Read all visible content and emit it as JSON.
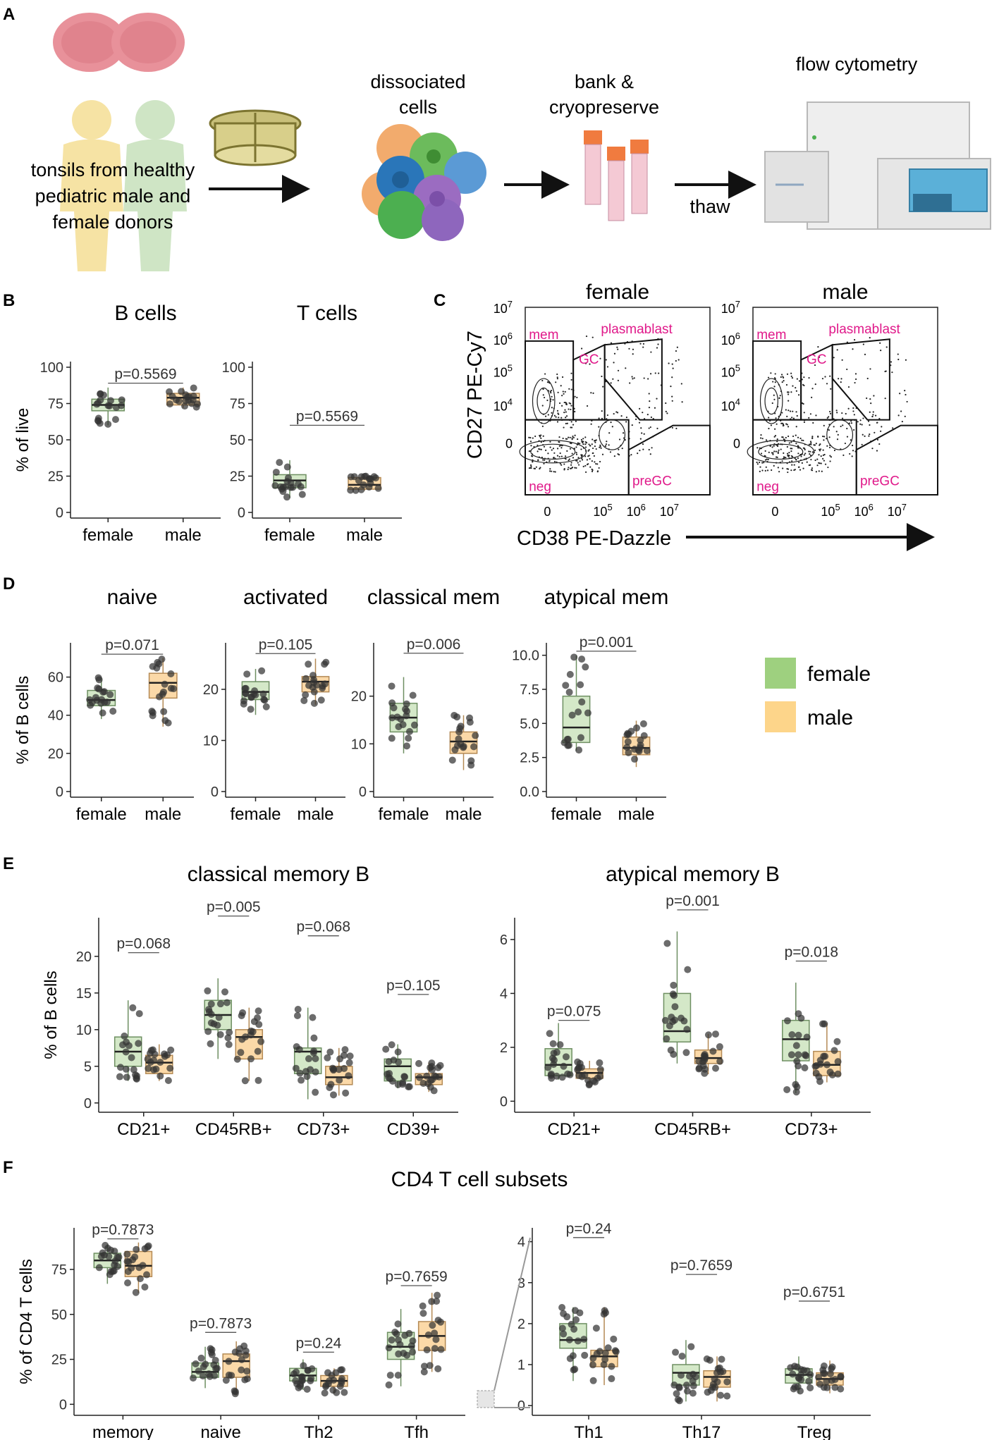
{
  "colors": {
    "female_fill": "#d4e8c8",
    "female_stroke": "#6e8f62",
    "male_fill": "#fbd9a8",
    "male_stroke": "#b48a55",
    "legend_female": "#9ed07f",
    "legend_male": "#fdd58a",
    "gate_label": "#e0198a",
    "dot": "#333333"
  },
  "panel_letters": [
    "A",
    "B",
    "C",
    "D",
    "E",
    "F"
  ],
  "workflow": {
    "donor_label": [
      "tonsils from healthy",
      "pediatric male and",
      "female donors"
    ],
    "dissociated_label": [
      "dissociated",
      "cells"
    ],
    "bank_label": [
      "bank &",
      "cryopreserve"
    ],
    "thaw_label": "thaw",
    "flow_label": "flow cytometry"
  },
  "flow": {
    "titles": [
      "female",
      "male"
    ],
    "y_label": "CD27 PE-Cy7",
    "x_label": "CD38 PE-Dazzle",
    "y_ticks": [
      {
        "b": "10",
        "e": "7"
      },
      {
        "b": "10",
        "e": "6"
      },
      {
        "b": "10",
        "e": "5"
      },
      {
        "b": "10",
        "e": "4"
      },
      {
        "b": "0",
        "e": ""
      }
    ],
    "x_ticks": [
      {
        "b": "0",
        "e": ""
      },
      {
        "b": "10",
        "e": "5"
      },
      {
        "b": "10",
        "e": "6"
      },
      {
        "b": "10",
        "e": "7"
      }
    ],
    "gates": [
      "mem",
      "plasmablast",
      "GC",
      "neg",
      "preGC"
    ]
  },
  "legend": {
    "female": "female",
    "male": "male"
  },
  "chart_data": [
    {
      "id": "B1",
      "type": "box",
      "title": "B cells",
      "ylabel": "% of live",
      "ylim": [
        0,
        100
      ],
      "yticks": [
        0,
        25,
        50,
        75,
        100
      ],
      "categories": [
        "female",
        "male"
      ],
      "boxes": [
        {
          "group": "female",
          "cat": 0,
          "q1": 70,
          "med": 74,
          "q3": 78,
          "lo": 60,
          "hi": 86
        },
        {
          "group": "male",
          "cat": 1,
          "q1": 74,
          "med": 79,
          "q3": 82,
          "lo": 72,
          "hi": 86
        }
      ],
      "pvalues": [
        {
          "label": "p=0.5569",
          "at": 89
        }
      ]
    },
    {
      "id": "B2",
      "type": "box",
      "title": "T cells",
      "ylabel": "",
      "ylim": [
        0,
        100
      ],
      "yticks": [
        0,
        25,
        50,
        75,
        100
      ],
      "categories": [
        "female",
        "male"
      ],
      "boxes": [
        {
          "group": "female",
          "cat": 0,
          "q1": 17,
          "med": 22,
          "q3": 26,
          "lo": 10,
          "hi": 36
        },
        {
          "group": "male",
          "cat": 1,
          "q1": 16,
          "med": 19,
          "q3": 24,
          "lo": 15,
          "hi": 25
        }
      ],
      "pvalues": [
        {
          "label": "p=0.5569",
          "at": 60
        }
      ]
    },
    {
      "id": "D1",
      "type": "box",
      "title": "naive",
      "ylabel": "% of B cells",
      "ylim": [
        0,
        75
      ],
      "yticks": [
        0,
        20,
        40,
        60
      ],
      "categories": [
        "female",
        "male"
      ],
      "boxes": [
        {
          "group": "female",
          "cat": 0,
          "q1": 45,
          "med": 48,
          "q3": 53,
          "lo": 38,
          "hi": 60
        },
        {
          "group": "male",
          "cat": 1,
          "q1": 49,
          "med": 57,
          "q3": 62,
          "lo": 34,
          "hi": 70
        }
      ],
      "pvalues": [
        {
          "label": "p=0.071",
          "at": 72
        }
      ]
    },
    {
      "id": "D2",
      "type": "box",
      "title": "activated",
      "ylabel": "",
      "ylim": [
        0,
        28
      ],
      "yticks": [
        0,
        10,
        20
      ],
      "categories": [
        "female",
        "male"
      ],
      "boxes": [
        {
          "group": "female",
          "cat": 0,
          "q1": 18,
          "med": 19.5,
          "q3": 21.5,
          "lo": 15,
          "hi": 24
        },
        {
          "group": "male",
          "cat": 1,
          "q1": 19.5,
          "med": 21.5,
          "q3": 22.5,
          "lo": 17,
          "hi": 26
        }
      ],
      "pvalues": [
        {
          "label": "p=0.105",
          "at": 27
        }
      ]
    },
    {
      "id": "D3",
      "type": "box",
      "title": "classical mem",
      "ylabel": "",
      "ylim": [
        0,
        30
      ],
      "yticks": [
        0,
        10,
        20
      ],
      "categories": [
        "female",
        "male"
      ],
      "boxes": [
        {
          "group": "female",
          "cat": 0,
          "q1": 12.5,
          "med": 15.5,
          "q3": 18.5,
          "lo": 8,
          "hi": 24
        },
        {
          "group": "male",
          "cat": 1,
          "q1": 8,
          "med": 10.5,
          "q3": 12.5,
          "lo": 4.5,
          "hi": 16
        }
      ],
      "pvalues": [
        {
          "label": "p=0.006",
          "at": 29
        }
      ]
    },
    {
      "id": "D4",
      "type": "box",
      "title": "atypical mem",
      "ylabel": "",
      "ylim": [
        0,
        10.5
      ],
      "yticks": [
        0.0,
        2.5,
        5.0,
        7.5,
        10.0
      ],
      "tickfmt": 1,
      "categories": [
        "female",
        "male"
      ],
      "boxes": [
        {
          "group": "female",
          "cat": 0,
          "q1": 3.6,
          "med": 4.7,
          "q3": 7.0,
          "lo": 3.0,
          "hi": 10.0
        },
        {
          "group": "male",
          "cat": 1,
          "q1": 2.7,
          "med": 3.2,
          "q3": 4.0,
          "lo": 1.8,
          "hi": 5.2
        }
      ],
      "pvalues": [
        {
          "label": "p=0.001",
          "at": 10.3
        }
      ]
    },
    {
      "id": "E1",
      "type": "box",
      "title": "classical memory B",
      "ylabel": "% of B cells",
      "ylim": [
        -0.5,
        24.5
      ],
      "yticks": [
        0,
        5,
        10,
        15,
        20
      ],
      "categories": [
        "CD21+",
        "CD45RB+",
        "CD73+",
        "CD39+"
      ],
      "boxes": [
        {
          "group": "female",
          "cat": 0,
          "q1": 5,
          "med": 7,
          "q3": 9,
          "lo": 3,
          "hi": 14
        },
        {
          "group": "male",
          "cat": 0,
          "q1": 4,
          "med": 5.5,
          "q3": 6.5,
          "lo": 3,
          "hi": 8
        },
        {
          "group": "female",
          "cat": 1,
          "q1": 10,
          "med": 12,
          "q3": 14,
          "lo": 6,
          "hi": 17
        },
        {
          "group": "male",
          "cat": 1,
          "q1": 6,
          "med": 9,
          "q3": 10,
          "lo": 3,
          "hi": 13
        },
        {
          "group": "female",
          "cat": 2,
          "q1": 4,
          "med": 7,
          "q3": 7.5,
          "lo": 0.5,
          "hi": 13
        },
        {
          "group": "male",
          "cat": 2,
          "q1": 2.5,
          "med": 3.5,
          "q3": 5,
          "lo": 1,
          "hi": 7.5
        },
        {
          "group": "female",
          "cat": 3,
          "q1": 3,
          "med": 5,
          "q3": 6,
          "lo": 2,
          "hi": 8
        },
        {
          "group": "male",
          "cat": 3,
          "q1": 2.5,
          "med": 3.5,
          "q3": 4,
          "lo": 1.5,
          "hi": 5.5
        }
      ],
      "pvalues": [
        {
          "label": "p=0.068",
          "at": 20.5,
          "cat": 0
        },
        {
          "label": "p=0.005",
          "at": 25.5,
          "cat": 1
        },
        {
          "label": "p=0.068",
          "at": 22.8,
          "cat": 2
        },
        {
          "label": "p=0.105",
          "at": 14.8,
          "cat": 3
        }
      ]
    },
    {
      "id": "E2",
      "type": "box",
      "title": "atypical memory B",
      "ylabel": "",
      "ylim": [
        -0.2,
        6.6
      ],
      "yticks": [
        0,
        2,
        4,
        6
      ],
      "categories": [
        "CD21+",
        "CD45RB+",
        "CD73+"
      ],
      "boxes": [
        {
          "group": "female",
          "cat": 0,
          "q1": 0.95,
          "med": 1.35,
          "q3": 1.95,
          "lo": 0.8,
          "hi": 2.9
        },
        {
          "group": "male",
          "cat": 0,
          "q1": 0.85,
          "med": 1.05,
          "q3": 1.2,
          "lo": 0.6,
          "hi": 1.5
        },
        {
          "group": "female",
          "cat": 1,
          "q1": 2.2,
          "med": 2.6,
          "q3": 4.0,
          "lo": 1.4,
          "hi": 6.3
        },
        {
          "group": "male",
          "cat": 1,
          "q1": 1.4,
          "med": 1.6,
          "q3": 1.9,
          "lo": 1.0,
          "hi": 2.5
        },
        {
          "group": "female",
          "cat": 2,
          "q1": 1.5,
          "med": 2.3,
          "q3": 3.0,
          "lo": 0.3,
          "hi": 4.4
        },
        {
          "group": "male",
          "cat": 2,
          "q1": 0.95,
          "med": 1.35,
          "q3": 1.85,
          "lo": 0.7,
          "hi": 2.9
        }
      ],
      "pvalues": [
        {
          "label": "p=0.075",
          "at": 3.0,
          "cat": 0
        },
        {
          "label": "p=0.001",
          "at": 7.1,
          "cat": 1
        },
        {
          "label": "p=0.018",
          "at": 5.2,
          "cat": 2
        }
      ]
    },
    {
      "id": "F1",
      "type": "box",
      "title": "CD4 T cell subsets",
      "ylabel": "% of CD4 T cells",
      "ylim": [
        -3,
        95
      ],
      "yticks": [
        0,
        25,
        50,
        75
      ],
      "categories": [
        "memory",
        "naive",
        "Th2",
        "Tfh"
      ],
      "boxes": [
        {
          "group": "female",
          "cat": 0,
          "q1": 76,
          "med": 80,
          "q3": 84,
          "lo": 67,
          "hi": 89
        },
        {
          "group": "male",
          "cat": 0,
          "q1": 71,
          "med": 77,
          "q3": 85,
          "lo": 62,
          "hi": 90
        },
        {
          "group": "female",
          "cat": 1,
          "q1": 15,
          "med": 18,
          "q3": 23,
          "lo": 9,
          "hi": 32
        },
        {
          "group": "male",
          "cat": 1,
          "q1": 15,
          "med": 24,
          "q3": 28,
          "lo": 5,
          "hi": 35
        },
        {
          "group": "female",
          "cat": 2,
          "q1": 13,
          "med": 16,
          "q3": 20,
          "lo": 8,
          "hi": 25
        },
        {
          "group": "male",
          "cat": 2,
          "q1": 10,
          "med": 13,
          "q3": 16,
          "lo": 6,
          "hi": 20
        },
        {
          "group": "female",
          "cat": 3,
          "q1": 25,
          "med": 32,
          "q3": 40,
          "lo": 10,
          "hi": 53
        },
        {
          "group": "male",
          "cat": 3,
          "q1": 30,
          "med": 38,
          "q3": 46,
          "lo": 18,
          "hi": 62
        }
      ],
      "pvalues": [
        {
          "label": "p=0.7873",
          "at": 92,
          "cat": 0
        },
        {
          "label": "p=0.7873",
          "at": 40,
          "cat": 1
        },
        {
          "label": "p=0.24",
          "at": 29,
          "cat": 2
        },
        {
          "label": "p=0.7659",
          "at": 66,
          "cat": 3
        }
      ]
    },
    {
      "id": "F2",
      "type": "box",
      "title": "",
      "ylabel": "",
      "ylim": [
        -0.1,
        4.2
      ],
      "yticks": [
        0,
        1,
        2,
        3,
        4
      ],
      "categories": [
        "Th1",
        "Th17",
        "Treg"
      ],
      "boxes": [
        {
          "group": "female",
          "cat": 0,
          "q1": 1.4,
          "med": 1.6,
          "q3": 2.0,
          "lo": 0.6,
          "hi": 2.4
        },
        {
          "group": "male",
          "cat": 0,
          "q1": 0.95,
          "med": 1.2,
          "q3": 1.35,
          "lo": 0.5,
          "hi": 2.4
        },
        {
          "group": "female",
          "cat": 1,
          "q1": 0.5,
          "med": 0.8,
          "q3": 1.0,
          "lo": 0.1,
          "hi": 1.6
        },
        {
          "group": "male",
          "cat": 1,
          "q1": 0.45,
          "med": 0.7,
          "q3": 0.85,
          "lo": 0.1,
          "hi": 1.2
        },
        {
          "group": "female",
          "cat": 2,
          "q1": 0.55,
          "med": 0.75,
          "q3": 0.9,
          "lo": 0.3,
          "hi": 1.2
        },
        {
          "group": "male",
          "cat": 2,
          "q1": 0.5,
          "med": 0.65,
          "q3": 0.8,
          "lo": 0.3,
          "hi": 1.1
        }
      ],
      "pvalues": [
        {
          "label": "p=0.24",
          "at": 4.1,
          "cat": 0
        },
        {
          "label": "p=0.7659",
          "at": 3.2,
          "cat": 1
        },
        {
          "label": "p=0.6751",
          "at": 2.55,
          "cat": 2
        }
      ]
    }
  ]
}
